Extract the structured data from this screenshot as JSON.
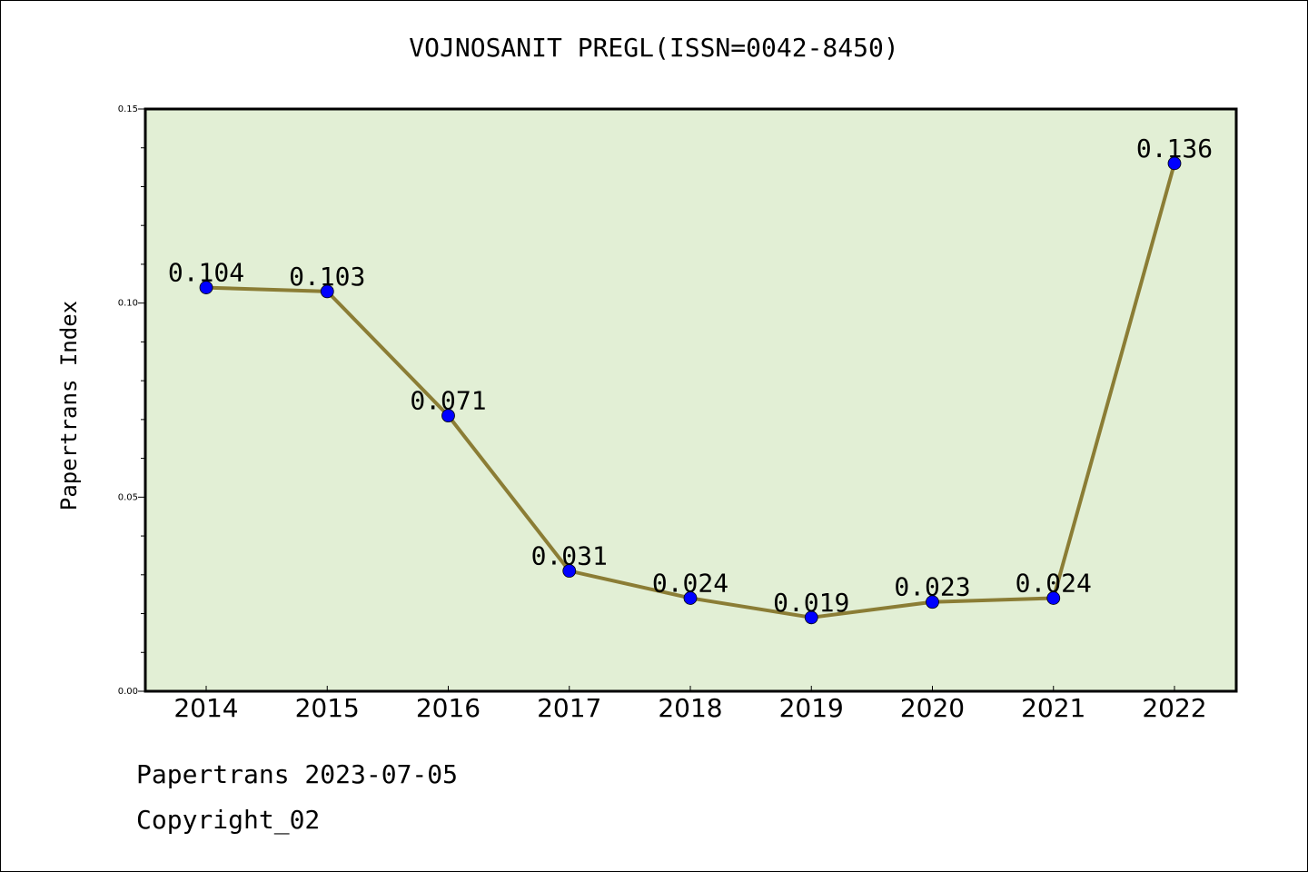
{
  "chart_data": {
    "type": "line",
    "title": "VOJNOSANIT PREGL(ISSN=0042-8450)",
    "xlabel": "",
    "ylabel": "Papertrans Index",
    "categories": [
      "2014",
      "2015",
      "2016",
      "2017",
      "2018",
      "2019",
      "2020",
      "2021",
      "2022"
    ],
    "series": [
      {
        "values": [
          0.104,
          0.103,
          0.071,
          0.031,
          0.024,
          0.019,
          0.023,
          0.024,
          0.136
        ],
        "labels": [
          "0.104",
          "0.103",
          "0.071",
          "0.031",
          "0.024",
          "0.019",
          "0.023",
          "0.024",
          "0.136"
        ]
      }
    ],
    "ylim": [
      0,
      0.15
    ],
    "yticks": [
      {
        "value": 0,
        "label": "0.00"
      },
      {
        "value": 0.05,
        "label": "0.05"
      },
      {
        "value": 0.1,
        "label": "0.10"
      },
      {
        "value": 0.15,
        "label": "0.15"
      }
    ],
    "grid": false,
    "plot_background": "#e2efd5",
    "line_color": "#8b7d35",
    "marker_color": "#0000ff"
  },
  "footer": {
    "line1": "Papertrans 2023-07-05",
    "line2": "Copyright_02"
  }
}
